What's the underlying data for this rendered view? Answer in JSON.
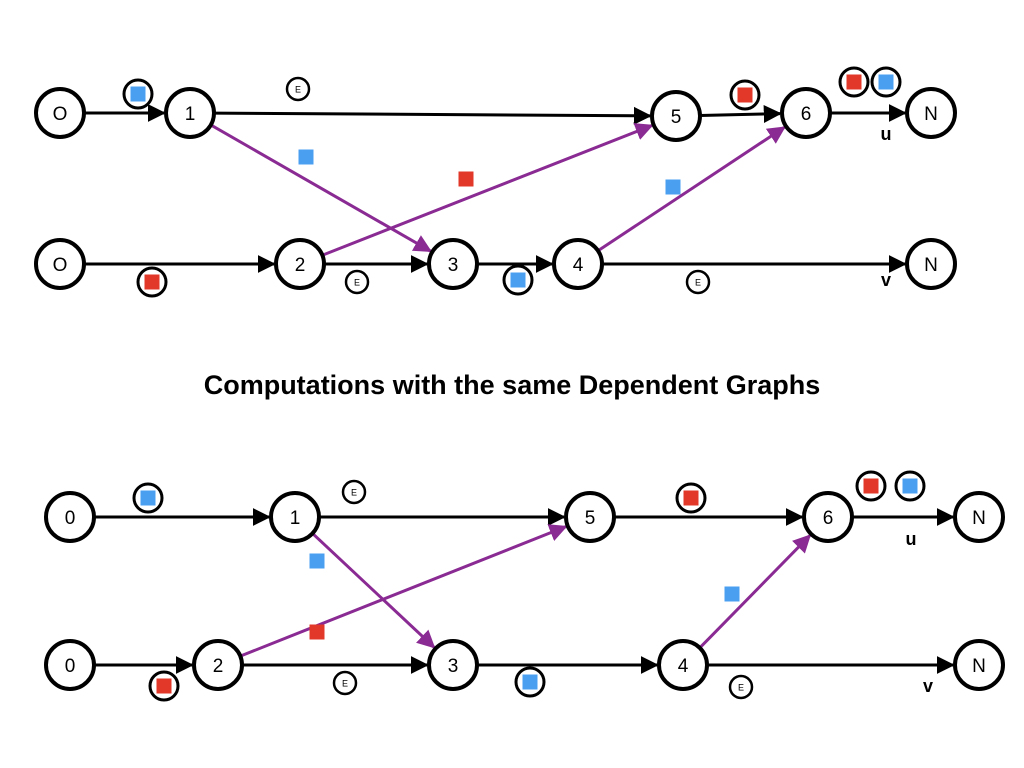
{
  "title": "Computations with the same Dependent Graphs",
  "colors": {
    "black_edge": "#000000",
    "dependency_edge": "#8a2a93",
    "red_token": "#e2382a",
    "blue_token": "#4a9ff0"
  },
  "graphs": [
    {
      "nodes": [
        {
          "id": "u0",
          "label": "O"
        },
        {
          "id": "u1",
          "label": "1"
        },
        {
          "id": "u5",
          "label": "5"
        },
        {
          "id": "u6",
          "label": "6"
        },
        {
          "id": "uN",
          "label": "N"
        },
        {
          "id": "v0",
          "label": "O"
        },
        {
          "id": "v2",
          "label": "2"
        },
        {
          "id": "v3",
          "label": "3"
        },
        {
          "id": "v4",
          "label": "4"
        },
        {
          "id": "vN",
          "label": "N"
        }
      ],
      "edge_labels": [
        {
          "id": "u",
          "text": "u"
        },
        {
          "id": "v",
          "text": "v"
        }
      ],
      "e_badge_text": "E"
    },
    {
      "nodes": [
        {
          "id": "u0",
          "label": "0"
        },
        {
          "id": "u1",
          "label": "1"
        },
        {
          "id": "u5",
          "label": "5"
        },
        {
          "id": "u6",
          "label": "6"
        },
        {
          "id": "uN",
          "label": "N"
        },
        {
          "id": "v0",
          "label": "0"
        },
        {
          "id": "v2",
          "label": "2"
        },
        {
          "id": "v3",
          "label": "3"
        },
        {
          "id": "v4",
          "label": "4"
        },
        {
          "id": "vN",
          "label": "N"
        }
      ],
      "edge_labels": [
        {
          "id": "u",
          "text": "u"
        },
        {
          "id": "v",
          "text": "v"
        }
      ],
      "e_badge_text": "E"
    }
  ]
}
